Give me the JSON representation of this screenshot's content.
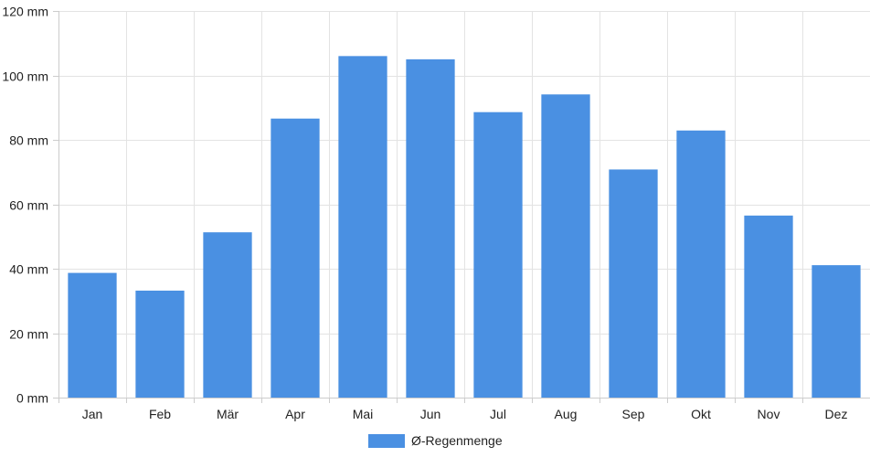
{
  "chart_data": {
    "type": "bar",
    "categories": [
      "Jan",
      "Feb",
      "Mär",
      "Apr",
      "Mai",
      "Jun",
      "Jul",
      "Aug",
      "Sep",
      "Okt",
      "Nov",
      "Dez"
    ],
    "series": [
      {
        "name": "Ø-Regenmenge",
        "values": [
          38.7,
          33.2,
          51.3,
          86.6,
          106.0,
          105.0,
          88.6,
          94.1,
          70.8,
          82.9,
          56.5,
          41.1
        ],
        "color": "#4a90e2"
      }
    ],
    "unit": "mm",
    "ylim": [
      0,
      120
    ],
    "yticks": [
      0,
      20,
      40,
      60,
      80,
      100,
      120
    ],
    "ytick_labels": [
      "0 mm",
      "20 mm",
      "40 mm",
      "60 mm",
      "80 mm",
      "100 mm",
      "120 mm"
    ],
    "grid": true,
    "legend": "bottom-center",
    "title": "",
    "xlabel": "",
    "ylabel": ""
  }
}
